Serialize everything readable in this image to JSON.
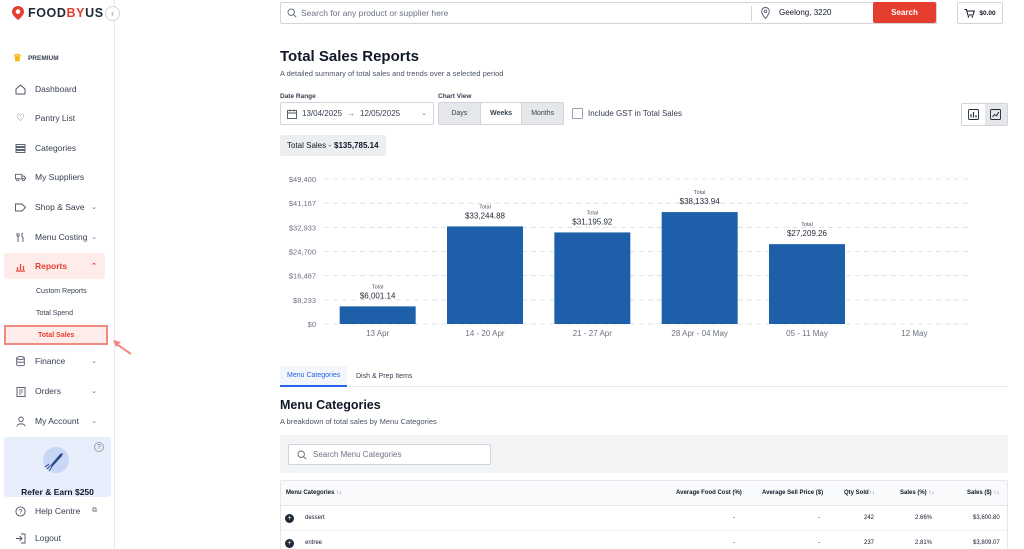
{
  "brand": {
    "name_part1": "FOOD",
    "name_part2": "BY",
    "name_part3": "US",
    "accent_color": "#e53e2f"
  },
  "sidebar": {
    "premium_label": "PREMIUM",
    "items": [
      {
        "label": "Dashboard",
        "icon": "home-icon"
      },
      {
        "label": "Pantry List",
        "icon": "heart-icon"
      },
      {
        "label": "Categories",
        "icon": "categories-icon"
      },
      {
        "label": "My Suppliers",
        "icon": "truck-icon"
      },
      {
        "label": "Shop & Save",
        "icon": "tag-icon"
      },
      {
        "label": "Menu Costing",
        "icon": "cutlery-icon"
      },
      {
        "label": "Reports",
        "icon": "chart-icon"
      },
      {
        "label": "Finance",
        "icon": "database-icon"
      },
      {
        "label": "Orders",
        "icon": "clipboard-icon"
      },
      {
        "label": "My Account",
        "icon": "user-icon"
      }
    ],
    "report_sub_items": [
      "Custom Reports",
      "Total Spend",
      "Total Sales"
    ],
    "refer_label": "Refer & Earn $250",
    "help_label": "Help Centre",
    "logout_label": "Logout"
  },
  "topbar": {
    "search_placeholder": "Search for any product or supplier here",
    "location": "Geelong, 3220",
    "search_button": "Search",
    "cart_total": "$0.00"
  },
  "page": {
    "title": "Total Sales Reports",
    "subtitle": "A detailed summary of total sales and trends over a selected period",
    "date_range_label": "Date Range",
    "date_from": "13/04/2025",
    "date_arrow": "→",
    "date_to": "12/05/2025",
    "chart_view_label": "Chart View",
    "chart_view_options": [
      "Days",
      "Weeks",
      "Months"
    ],
    "chart_view_selected": "Weeks",
    "gst_label": "Include GST in Total Sales",
    "total_sales_label": "Total Sales - ",
    "total_sales_value": "$135,785.14"
  },
  "chart_data": {
    "type": "bar",
    "categories": [
      "13 Apr",
      "14 - 20 Apr",
      "21 - 27 Apr",
      "28 Apr - 04 May",
      "05 - 11 May",
      "12 May"
    ],
    "values": [
      6001.14,
      33244.88,
      31195.92,
      38133.94,
      27209.26,
      0
    ],
    "value_labels": [
      "$6,001.14",
      "$33,244.88",
      "$31,195.92",
      "$38,133.94",
      "$27,209.26",
      ""
    ],
    "bar_caption": "Total",
    "y_ticks": [
      "$0",
      "$8,233",
      "$16,467",
      "$24,700",
      "$32,933",
      "$41,167",
      "$49,400"
    ],
    "ylim": [
      0,
      49400
    ],
    "grid": true,
    "bar_color": "#1e5faa"
  },
  "tabs": [
    "Menu Categories",
    "Dish & Prep Items"
  ],
  "section": {
    "title": "Menu Categories",
    "subtitle": "A breakdown of total sales by Menu Categories",
    "search_placeholder": "Search Menu Categories"
  },
  "table": {
    "headers": [
      "Menu Categories",
      "Average Food Cost (%)",
      "Average Sell Price ($)",
      "Qty Sold",
      "Sales (%)",
      "Sales ($)"
    ],
    "sort_glyph": "↑↓",
    "rows": [
      {
        "name": "dessert",
        "food_cost": "-",
        "sell_price": "-",
        "qty": "242",
        "pct": "2.66%",
        "sales": "$3,600.80"
      },
      {
        "name": "entree",
        "food_cost": "-",
        "sell_price": "-",
        "qty": "237",
        "pct": "2.81%",
        "sales": "$3,809.07"
      }
    ]
  }
}
